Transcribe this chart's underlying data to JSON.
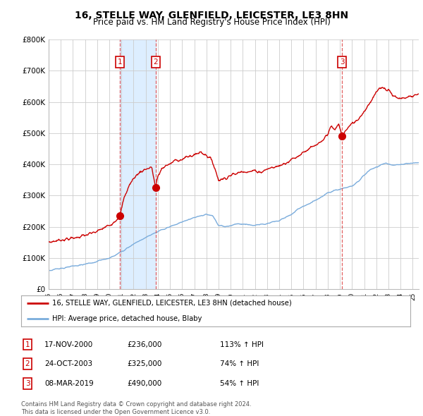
{
  "title": "16, STELLE WAY, GLENFIELD, LEICESTER, LE3 8HN",
  "subtitle": "Price paid vs. HM Land Registry's House Price Index (HPI)",
  "ylim": [
    0,
    800000
  ],
  "yticks": [
    0,
    100000,
    200000,
    300000,
    400000,
    500000,
    600000,
    700000,
    800000
  ],
  "ytick_labels": [
    "£0",
    "£100K",
    "£200K",
    "£300K",
    "£400K",
    "£500K",
    "£600K",
    "£700K",
    "£800K"
  ],
  "sales": [
    {
      "date_dec": 2000.88,
      "price": 236000,
      "label": "1",
      "pct": "113%",
      "date_str": "17-NOV-2000"
    },
    {
      "date_dec": 2003.81,
      "price": 325000,
      "label": "2",
      "pct": "74%",
      "date_str": "24-OCT-2003"
    },
    {
      "date_dec": 2019.18,
      "price": 490000,
      "label": "3",
      "pct": "54%",
      "date_str": "08-MAR-2019"
    }
  ],
  "red_line_color": "#cc0000",
  "blue_line_color": "#7aacdc",
  "shade_color": "#ddeeff",
  "grid_color": "#cccccc",
  "vline_color": "#dd4444",
  "background_color": "#ffffff",
  "title_fontsize": 10,
  "subtitle_fontsize": 8.5,
  "legend_label_red": "16, STELLE WAY, GLENFIELD, LEICESTER, LE3 8HN (detached house)",
  "legend_label_blue": "HPI: Average price, detached house, Blaby",
  "footer": "Contains HM Land Registry data © Crown copyright and database right 2024.\nThis data is licensed under the Open Government Licence v3.0.",
  "xlim_start": 1995.0,
  "xlim_end": 2025.5
}
